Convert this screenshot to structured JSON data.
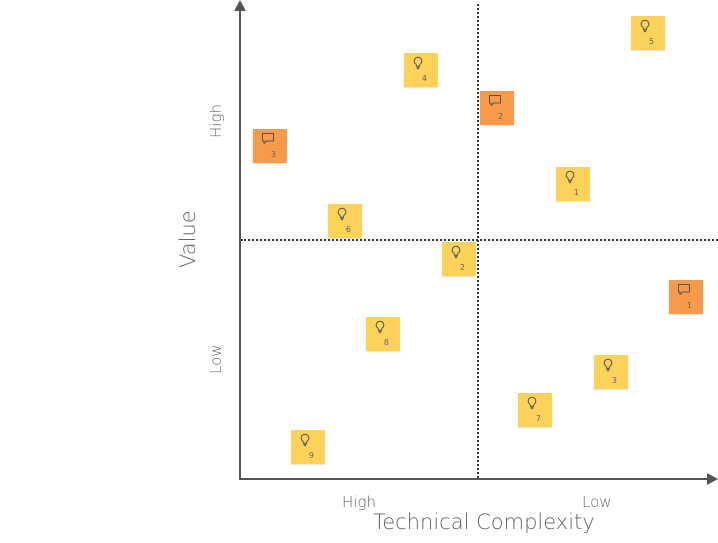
{
  "axes": {
    "x_title": "Technical Complexity",
    "x_high": "High",
    "x_low": "Low",
    "y_title": "Value",
    "y_high": "High",
    "y_low": "Low"
  },
  "colors": {
    "idea": "#fdd25b",
    "comment": "#f79a4a",
    "axis": "#555555"
  },
  "notes": [
    {
      "kind": "idea",
      "icon": "lightbulb-icon",
      "number": "5"
    },
    {
      "kind": "idea",
      "icon": "lightbulb-icon",
      "number": "4"
    },
    {
      "kind": "comment",
      "icon": "speech-bubble-icon",
      "number": "2"
    },
    {
      "kind": "comment",
      "icon": "speech-bubble-icon",
      "number": "3"
    },
    {
      "kind": "idea",
      "icon": "lightbulb-icon",
      "number": "1"
    },
    {
      "kind": "idea",
      "icon": "lightbulb-icon",
      "number": "6"
    },
    {
      "kind": "idea",
      "icon": "lightbulb-icon",
      "number": "2"
    },
    {
      "kind": "comment",
      "icon": "speech-bubble-icon",
      "number": "1"
    },
    {
      "kind": "idea",
      "icon": "lightbulb-icon",
      "number": "8"
    },
    {
      "kind": "idea",
      "icon": "lightbulb-icon",
      "number": "3"
    },
    {
      "kind": "idea",
      "icon": "lightbulb-icon",
      "number": "7"
    },
    {
      "kind": "idea",
      "icon": "lightbulb-icon",
      "number": "9"
    }
  ]
}
